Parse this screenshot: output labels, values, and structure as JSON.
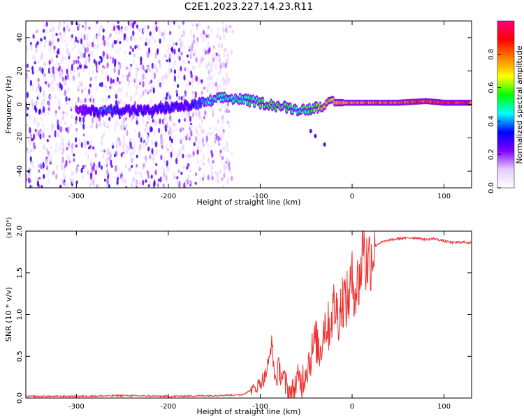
{
  "figure": {
    "title": "C2E1.2023.227.14.23.R11"
  },
  "chart_data": [
    {
      "type": "heatmap",
      "title": "C2E1.2023.227.14.23.R11",
      "xlabel": "Height of straight line (km)",
      "ylabel": "Frequency (Hz)",
      "xlim": [
        -355,
        130
      ],
      "ylim": [
        -50,
        50
      ],
      "x_ticks": [
        -300,
        -200,
        -100,
        0,
        100
      ],
      "x_tick_labels": [
        "-300",
        "-200",
        "-100",
        "0",
        "100"
      ],
      "y_ticks": [
        -40,
        -20,
        0,
        20,
        40
      ],
      "y_tick_labels": [
        "-40",
        "-20",
        "0",
        "20",
        "40"
      ],
      "colorbar": {
        "label": "Normalized spectral amplitude",
        "range": [
          0,
          1
        ],
        "ticks": [
          0,
          0.2,
          0.4,
          0.6,
          0.8
        ],
        "tick_labels": [
          "0.0",
          "0.2",
          "0.4",
          "0.6",
          "0.8"
        ],
        "colormap": [
          "#ffffff",
          "#e6ccff",
          "#8000ff",
          "#0000ff",
          "#00ffff",
          "#00ff00",
          "#ffff00",
          "#ff8000",
          "#ff0000",
          "#ff0080"
        ]
      },
      "noise_region_km": [
        -355,
        -130
      ],
      "ridge": {
        "height_km": [
          -300,
          -270,
          -250,
          -220,
          -200,
          -180,
          -160,
          -140,
          -120,
          -100,
          -80,
          -60,
          -50,
          -40,
          -30,
          -20,
          -10,
          0,
          20,
          50,
          80,
          100,
          130
        ],
        "frequency_hz": [
          -4,
          -4,
          -3,
          -4,
          -2,
          -1,
          1,
          4,
          3,
          1,
          -1,
          -3,
          -3,
          -2,
          0,
          1,
          1,
          1,
          1,
          1,
          2,
          1,
          1
        ],
        "amplitude": [
          0.2,
          0.4,
          0.35,
          0.3,
          0.35,
          0.3,
          0.45,
          0.5,
          0.5,
          0.55,
          0.6,
          0.5,
          0.55,
          0.6,
          0.7,
          0.75,
          0.8,
          0.8,
          0.85,
          0.85,
          0.9,
          0.9,
          0.9
        ]
      },
      "grid": false
    },
    {
      "type": "line",
      "xlabel": "Height of straight line (km)",
      "ylabel": "SNR (10 * v/v)",
      "y_multiplier": "(x10⁴)",
      "color": "#ee3030",
      "xlim": [
        -355,
        130
      ],
      "ylim": [
        0,
        2.0
      ],
      "x_ticks": [
        -300,
        -200,
        -100,
        0,
        100
      ],
      "x_tick_labels": [
        "-300",
        "-200",
        "-100",
        "0",
        "100"
      ],
      "y_ticks": [
        0,
        0.5,
        1.0,
        1.5,
        2.0
      ],
      "y_tick_labels": [
        "0.0",
        "0.5",
        "1.0",
        "1.5",
        "2.0"
      ],
      "x": [
        -355,
        -300,
        -250,
        -200,
        -150,
        -120,
        -105,
        -95,
        -90,
        -88,
        -85,
        -83,
        -80,
        -75,
        -70,
        -65,
        -60,
        -55,
        -50,
        -45,
        -40,
        -35,
        -30,
        -25,
        -20,
        -15,
        -10,
        -5,
        0,
        5,
        10,
        12,
        15,
        20,
        25,
        30,
        40,
        50,
        60,
        70,
        80,
        90,
        100,
        110,
        120,
        130
      ],
      "y": [
        0.02,
        0.02,
        0.03,
        0.02,
        0.03,
        0.04,
        0.12,
        0.25,
        0.45,
        0.7,
        0.35,
        0.2,
        0.35,
        0.25,
        0.08,
        0.05,
        0.2,
        0.2,
        0.35,
        0.5,
        0.7,
        0.55,
        0.9,
        0.85,
        1.1,
        1.0,
        1.2,
        1.15,
        1.4,
        1.3,
        1.55,
        2.0,
        1.6,
        1.7,
        1.82,
        1.86,
        1.89,
        1.91,
        1.92,
        1.92,
        1.9,
        1.91,
        1.88,
        1.86,
        1.87,
        1.86
      ],
      "grid": false
    }
  ]
}
